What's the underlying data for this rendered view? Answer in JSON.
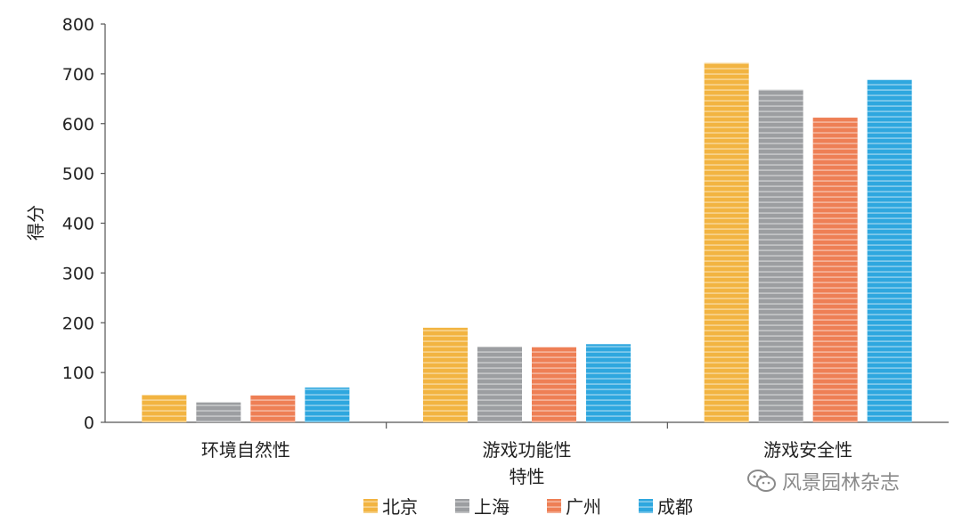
{
  "chart_data": {
    "type": "bar",
    "categories": [
      "环境自然性",
      "游戏功能性",
      "游戏安全性"
    ],
    "series": [
      {
        "name": "北京",
        "color": "#F2B441",
        "values": [
          55,
          190,
          722
        ]
      },
      {
        "name": "上海",
        "color": "#9C9EA1",
        "values": [
          40,
          152,
          668
        ]
      },
      {
        "name": "广州",
        "color": "#EE7F55",
        "values": [
          54,
          151,
          612
        ]
      },
      {
        "name": "成都",
        "color": "#2EA7DF",
        "values": [
          70,
          157,
          688
        ]
      }
    ],
    "title": "",
    "xlabel": "特性",
    "ylabel": "得分",
    "ylim": [
      0,
      800
    ],
    "yticks": [
      "0",
      "100",
      "200",
      "300",
      "400",
      "500",
      "600",
      "700",
      "800"
    ],
    "grid": false,
    "legend_position": "bottom"
  },
  "watermark": {
    "text": "风景园林杂志",
    "icon": "wechat-icon"
  }
}
